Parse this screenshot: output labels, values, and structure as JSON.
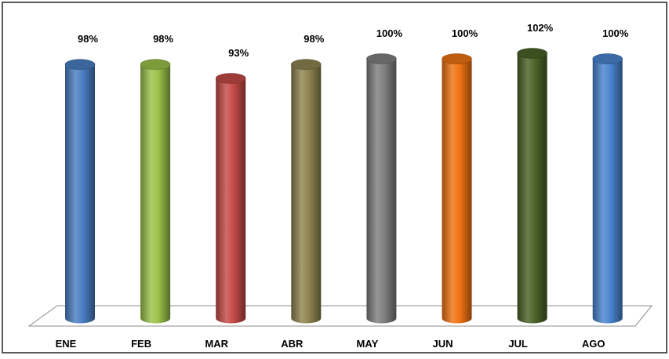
{
  "chart_data": {
    "type": "bar",
    "categories": [
      "ENE",
      "FEB",
      "MAR",
      "ABR",
      "MAY",
      "JUN",
      "JUL",
      "AGO"
    ],
    "values": [
      98,
      98,
      93,
      98,
      100,
      100,
      102,
      100
    ],
    "data_labels": [
      "98%",
      "98%",
      "93%",
      "98%",
      "100%",
      "100%",
      "102%",
      "100%"
    ],
    "bar_colors": [
      "#4a7fc4",
      "#9bc24a",
      "#c54a47",
      "#8f8450",
      "#7f7f7f",
      "#f07312",
      "#4a6327",
      "#4a84cf"
    ],
    "bar_style": "3d-cylinder",
    "ylim": [
      0,
      102
    ],
    "grid": false,
    "legend": "none",
    "title": "",
    "xlabel": "",
    "ylabel": ""
  }
}
